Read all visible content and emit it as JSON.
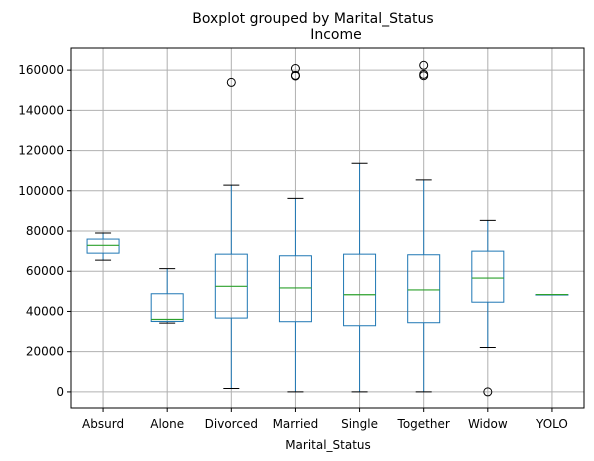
{
  "chart_data": {
    "type": "boxplot",
    "suptitle": "Boxplot grouped by Marital_Status",
    "title": "Income",
    "xlabel": "Marital_Status",
    "ylabel": "",
    "ylim": [
      -8000,
      171000
    ],
    "yticks": [
      0,
      20000,
      40000,
      60000,
      80000,
      100000,
      120000,
      140000,
      160000
    ],
    "ytick_labels": [
      "0",
      "20000",
      "40000",
      "60000",
      "80000",
      "100000",
      "120000",
      "140000",
      "160000"
    ],
    "grid": true,
    "colors": {
      "box": "#1f77b4",
      "median": "#2ca02c",
      "whisker": "#1f77b4",
      "cap": "#000000",
      "grid": "#b0b0b0",
      "axis": "#000000"
    },
    "categories": [
      "Absurd",
      "Alone",
      "Divorced",
      "Married",
      "Single",
      "Together",
      "Widow",
      "YOLO"
    ],
    "boxes": [
      {
        "category": "Absurd",
        "whislo": 65500,
        "q1": 69000,
        "med": 72900,
        "q3": 76000,
        "whishi": 79000,
        "fliers": []
      },
      {
        "category": "Alone",
        "whislo": 34200,
        "q1": 35000,
        "med": 36000,
        "q3": 48800,
        "whishi": 61300,
        "fliers": []
      },
      {
        "category": "Divorced",
        "whislo": 1700,
        "q1": 36700,
        "med": 52500,
        "q3": 68500,
        "whishi": 102800,
        "fliers": [
          153900
        ]
      },
      {
        "category": "Married",
        "whislo": 0,
        "q1": 34900,
        "med": 51700,
        "q3": 67700,
        "whishi": 96200,
        "fliers": [
          157100,
          157400,
          160800
        ]
      },
      {
        "category": "Single",
        "whislo": 0,
        "q1": 32900,
        "med": 48300,
        "q3": 68500,
        "whishi": 113700,
        "fliers": []
      },
      {
        "category": "Together",
        "whislo": 0,
        "q1": 34400,
        "med": 50700,
        "q3": 68200,
        "whishi": 105400,
        "fliers": [
          157200,
          157900,
          162400
        ]
      },
      {
        "category": "Widow",
        "whislo": 22100,
        "q1": 44600,
        "med": 56600,
        "q3": 70000,
        "whishi": 85300,
        "fliers": [
          0
        ]
      },
      {
        "category": "YOLO",
        "whislo": 48400,
        "q1": 48400,
        "med": 48400,
        "q3": 48400,
        "whishi": 48400,
        "fliers": []
      }
    ]
  }
}
